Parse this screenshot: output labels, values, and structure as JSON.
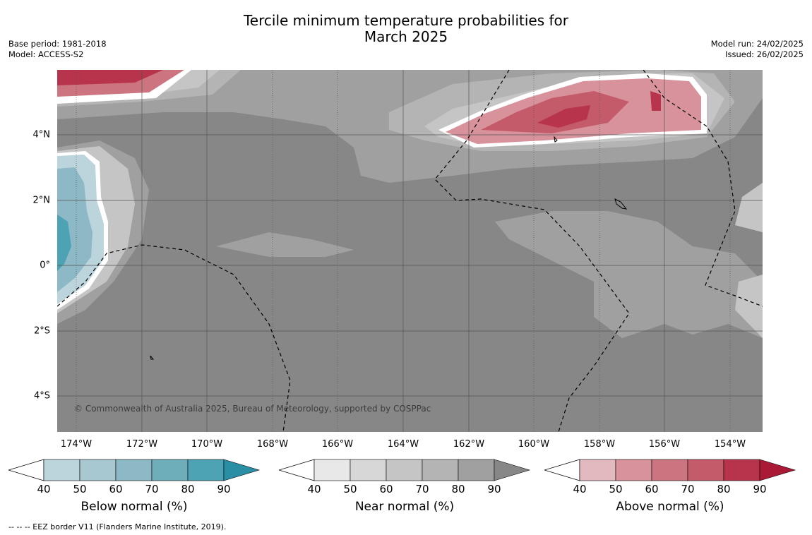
{
  "header": {
    "title_line1": "Tercile minimum temperature probabilities for",
    "title_line2": "March 2025",
    "base_period": "Base period: 1981-2018",
    "model": "Model: ACCESS-S2",
    "model_run": "Model run: 24/02/2025",
    "issued": "Issued: 26/02/2025"
  },
  "map": {
    "lat_labels": [
      "4°N",
      "2°N",
      "0°",
      "2°S",
      "4°S"
    ],
    "lon_labels": [
      "174°W",
      "172°W",
      "170°W",
      "168°W",
      "166°W",
      "164°W",
      "162°W",
      "160°W",
      "158°W",
      "156°W",
      "154°W"
    ],
    "background_color": "#878787",
    "copyright": "© Commonwealth of Australia 2025, Bureau of Meteorology, supported by COSPPac"
  },
  "colorbars": [
    {
      "title": "Below normal (%)",
      "ticks": [
        "40",
        "50",
        "60",
        "70",
        "80",
        "90"
      ],
      "colors": [
        "#bcd5dc",
        "#a7c8d0",
        "#8db9c6",
        "#6eaebb",
        "#4da2b3",
        "#2a8ea5"
      ]
    },
    {
      "title": "Near normal (%)",
      "ticks": [
        "40",
        "50",
        "60",
        "70",
        "80",
        "90"
      ],
      "colors": [
        "#e8e8e8",
        "#d7d7d7",
        "#c5c5c5",
        "#b4b4b4",
        "#a0a0a0",
        "#878787"
      ]
    },
    {
      "title": "Above normal (%)",
      "ticks": [
        "40",
        "50",
        "60",
        "70",
        "80",
        "90"
      ],
      "colors": [
        "#e3b9c0",
        "#d8929c",
        "#cc7580",
        "#c35b6a",
        "#b8344c",
        "#aa1a36"
      ]
    }
  ],
  "footnote": "--  --  -- EEZ border V11 (Flanders Marine Institute, 2019)."
}
